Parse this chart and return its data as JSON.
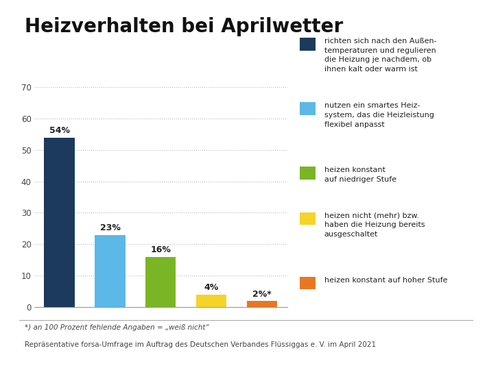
{
  "title": "Heizverhalten bei Aprilwetter",
  "values": [
    54,
    23,
    16,
    4,
    2
  ],
  "labels": [
    "54%",
    "23%",
    "16%",
    "4%",
    "2%*"
  ],
  "bar_colors": [
    "#1b3a5c",
    "#5bb8e8",
    "#7ab526",
    "#f5d327",
    "#e87722"
  ],
  "ylim": [
    0,
    70
  ],
  "yticks": [
    0,
    10,
    20,
    30,
    40,
    50,
    60,
    70
  ],
  "background_color": "#ffffff",
  "title_fontsize": 20,
  "bar_label_fontsize": 9,
  "legend_entries": [
    [
      "richten sich nach den Außen-\ntemperaturen und regulieren\ndie Heizung je nachdem, ob\nihnen kalt oder warm ist",
      "#1b3a5c"
    ],
    [
      "nutzen ein smartes Heiz-\nsystem, das die Heizleistung\nflexibel anpasst",
      "#5bb8e8"
    ],
    [
      "heizen konstant\nauf niedriger Stufe",
      "#7ab526"
    ],
    [
      "heizen nicht (mehr) bzw.\nhaben die Heizung bereits\nausgeschaltet",
      "#f5d327"
    ],
    [
      "heizen konstant auf hoher Stufe",
      "#e87722"
    ]
  ],
  "footnote_line1": "*) an 100 Prozent fehlende Angaben = „weiß nicht“",
  "footnote_line2": "Repräsentative forsa-Umfrage im Auftrag des Deutschen Verbandes Flüssiggas e. V. im April 2021"
}
